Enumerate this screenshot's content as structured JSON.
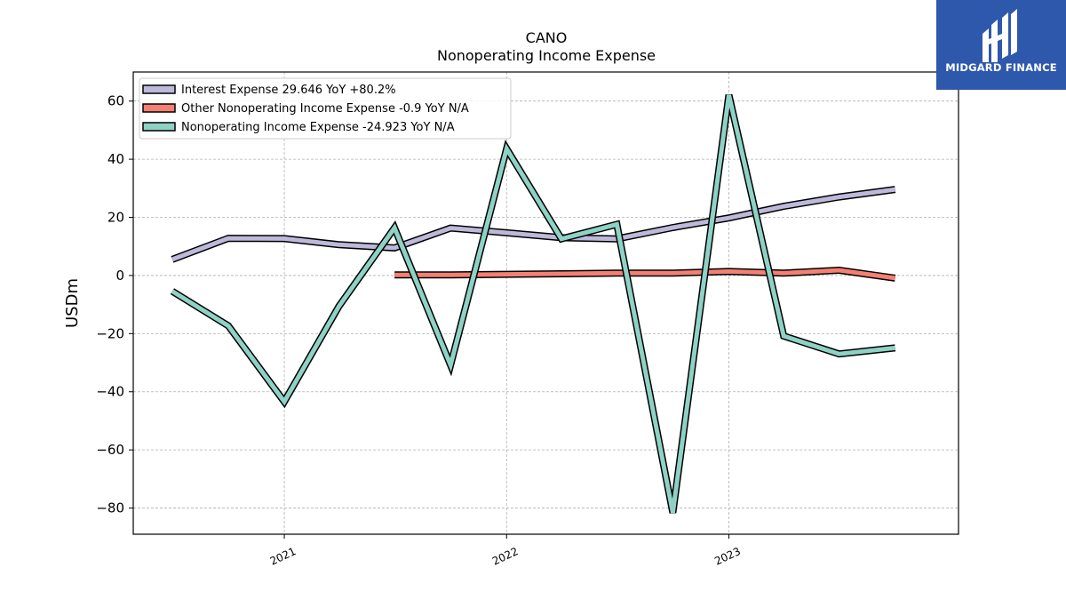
{
  "chart_data": {
    "type": "line",
    "title": "CANO",
    "subtitle": "Nonoperating Income Expense",
    "ylabel": "USDm",
    "xlabel": "",
    "ylim": [
      -89,
      70
    ],
    "yticks": [
      -80,
      -60,
      -40,
      -20,
      0,
      20,
      40,
      60
    ],
    "x_tick_labels": [
      "2021",
      "2022",
      "2023"
    ],
    "x": [
      "2020-07-01",
      "2020-10-01",
      "2021-01-01",
      "2021-04-01",
      "2021-07-01",
      "2021-10-01",
      "2022-01-01",
      "2022-04-01",
      "2022-07-01",
      "2022-10-01",
      "2023-01-01",
      "2023-04-01",
      "2023-07-01",
      "2023-10-01"
    ],
    "grid": true,
    "legend_position": "top-left",
    "series": [
      {
        "name": "Interest Expense",
        "legend_label": "Interest Expense  29.646 YoY +80.2%",
        "color": "#bcb9da",
        "values": [
          5.5,
          12.8,
          12.7,
          10.6,
          9.5,
          16.3,
          14.7,
          13.0,
          12.6,
          16.5,
          19.8,
          23.8,
          27.0,
          29.6
        ]
      },
      {
        "name": "Other Nonoperating Income Expense",
        "legend_label": "Other Nonoperating Income Expense  -0.9 YoY N/A",
        "color": "#f38073",
        "values": [
          null,
          null,
          null,
          null,
          0.2,
          0.2,
          0.4,
          0.6,
          0.8,
          0.8,
          1.4,
          0.8,
          1.8,
          -0.9
        ]
      },
      {
        "name": "Nonoperating Income Expense",
        "legend_label": "Nonoperating Income Expense  -24.923 YoY N/A",
        "color": "#8ed2c5",
        "values": [
          -5.4,
          -17.3,
          -43.4,
          -10.5,
          16.4,
          -30.8,
          43.6,
          12.6,
          17.6,
          -81.6,
          62.1,
          -20.8,
          -27.0,
          -24.9
        ]
      }
    ]
  },
  "logo": {
    "text": "MIDGARD FINANCE",
    "background": "#2e58ac"
  }
}
